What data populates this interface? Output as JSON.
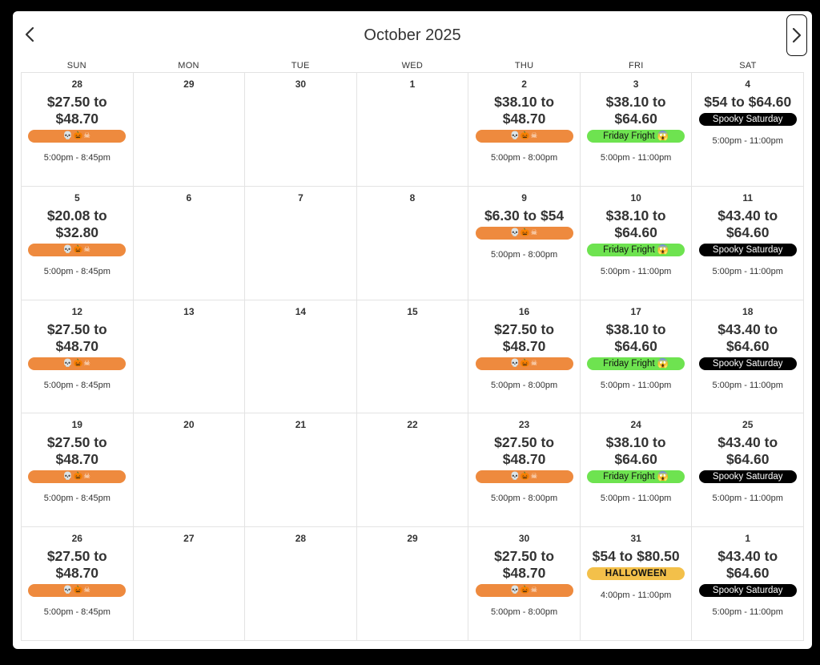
{
  "calendar": {
    "title": "October 2025",
    "prev_icon": "chevron-left-icon",
    "next_icon": "chevron-right-icon",
    "weekdays": [
      "SUN",
      "MON",
      "TUE",
      "WED",
      "THU",
      "FRI",
      "SAT"
    ],
    "badge_colors": {
      "orange": "#ee8a3e",
      "green": "#6ee350",
      "black": "#000000",
      "yellow": "#f3c04a"
    },
    "days": [
      {
        "day": "28",
        "price": "$27.50 to $48.70",
        "badge": "💀🎃☠",
        "badge_style": "orange",
        "time": "5:00pm - 8:45pm"
      },
      {
        "day": "29"
      },
      {
        "day": "30"
      },
      {
        "day": "1"
      },
      {
        "day": "2",
        "price": "$38.10 to $48.70",
        "badge": "💀🎃☠",
        "badge_style": "orange",
        "time": "5:00pm - 8:00pm"
      },
      {
        "day": "3",
        "price": "$38.10 to $64.60",
        "badge": "Friday Fright 😱",
        "badge_style": "green",
        "time": "5:00pm - 11:00pm"
      },
      {
        "day": "4",
        "price": "$54 to $64.60",
        "badge": "Spooky Saturday",
        "badge_style": "black",
        "time": "5:00pm - 11:00pm"
      },
      {
        "day": "5",
        "price": "$20.08 to $32.80",
        "badge": "💀🎃☠",
        "badge_style": "orange",
        "time": "5:00pm - 8:45pm"
      },
      {
        "day": "6"
      },
      {
        "day": "7"
      },
      {
        "day": "8"
      },
      {
        "day": "9",
        "price": "$6.30 to $54",
        "badge": "💀🎃☠",
        "badge_style": "orange",
        "time": "5:00pm - 8:00pm"
      },
      {
        "day": "10",
        "price": "$38.10 to $64.60",
        "badge": "Friday Fright 😱",
        "badge_style": "green",
        "time": "5:00pm - 11:00pm"
      },
      {
        "day": "11",
        "price": "$43.40 to $64.60",
        "badge": "Spooky Saturday",
        "badge_style": "black",
        "time": "5:00pm - 11:00pm"
      },
      {
        "day": "12",
        "price": "$27.50 to $48.70",
        "badge": "💀🎃☠",
        "badge_style": "orange",
        "time": "5:00pm - 8:45pm"
      },
      {
        "day": "13"
      },
      {
        "day": "14"
      },
      {
        "day": "15"
      },
      {
        "day": "16",
        "price": "$27.50 to $48.70",
        "badge": "💀🎃☠",
        "badge_style": "orange",
        "time": "5:00pm - 8:00pm"
      },
      {
        "day": "17",
        "price": "$38.10 to $64.60",
        "badge": "Friday Fright 😱",
        "badge_style": "green",
        "time": "5:00pm - 11:00pm"
      },
      {
        "day": "18",
        "price": "$43.40 to $64.60",
        "badge": "Spooky Saturday",
        "badge_style": "black",
        "time": "5:00pm - 11:00pm"
      },
      {
        "day": "19",
        "price": "$27.50 to $48.70",
        "badge": "💀🎃☠",
        "badge_style": "orange",
        "time": "5:00pm - 8:45pm"
      },
      {
        "day": "20"
      },
      {
        "day": "21"
      },
      {
        "day": "22"
      },
      {
        "day": "23",
        "price": "$27.50 to $48.70",
        "badge": "💀🎃☠",
        "badge_style": "orange",
        "time": "5:00pm - 8:00pm"
      },
      {
        "day": "24",
        "price": "$38.10 to $64.60",
        "badge": "Friday Fright 😱",
        "badge_style": "green",
        "time": "5:00pm - 11:00pm"
      },
      {
        "day": "25",
        "price": "$43.40 to $64.60",
        "badge": "Spooky Saturday",
        "badge_style": "black",
        "time": "5:00pm - 11:00pm"
      },
      {
        "day": "26",
        "price": "$27.50 to $48.70",
        "badge": "💀🎃☠",
        "badge_style": "orange",
        "time": "5:00pm - 8:45pm"
      },
      {
        "day": "27"
      },
      {
        "day": "28"
      },
      {
        "day": "29"
      },
      {
        "day": "30",
        "price": "$27.50 to $48.70",
        "badge": "💀🎃☠",
        "badge_style": "orange",
        "time": "5:00pm - 8:00pm"
      },
      {
        "day": "31",
        "price": "$54 to $80.50",
        "badge": "HALLOWEEN",
        "badge_style": "yellow",
        "time": "4:00pm - 11:00pm"
      },
      {
        "day": "1",
        "price": "$43.40 to $64.60",
        "badge": "Spooky Saturday",
        "badge_style": "black",
        "time": "5:00pm - 11:00pm"
      }
    ]
  }
}
